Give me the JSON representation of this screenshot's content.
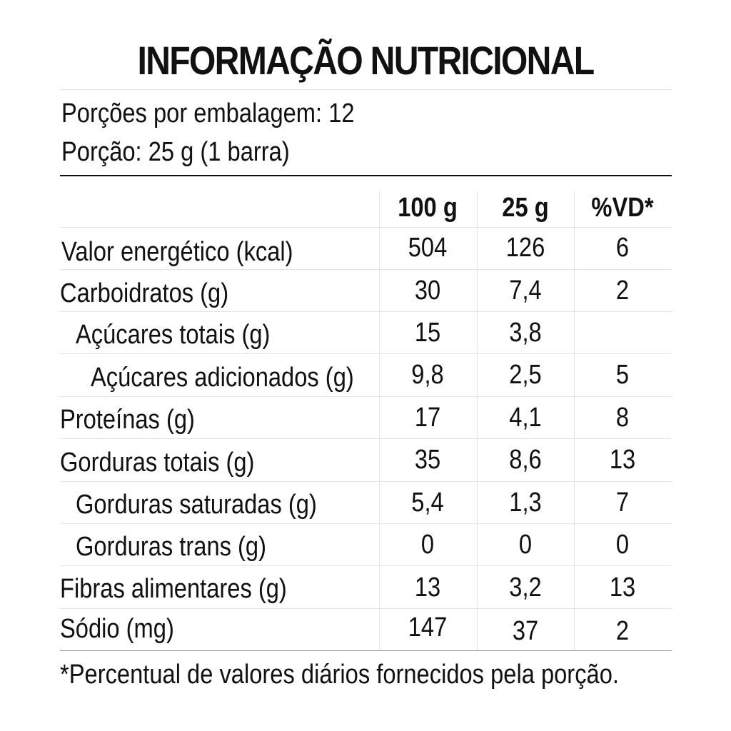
{
  "title": "INFORMAÇÃO NUTRICIONAL",
  "servings": {
    "per_package": "Porções por embalagem: 12",
    "portion": "Porção: 25 g (1 barra)"
  },
  "columns": [
    "100 g",
    "25 g",
    "%VD*"
  ],
  "rows": [
    {
      "label": "Valor energético (kcal)",
      "per100": "504",
      "per25": "126",
      "vd": "6"
    },
    {
      "label": "Carboidratos (g)",
      "per100": "30",
      "per25": "7,4",
      "vd": "2"
    },
    {
      "label": "Açúcares totais (g)",
      "per100": "15",
      "per25": "3,8",
      "vd": ""
    },
    {
      "label": "Açúcares adicionados (g)",
      "per100": "9,8",
      "per25": "2,5",
      "vd": "5"
    },
    {
      "label": "Proteínas (g)",
      "per100": "17",
      "per25": "4,1",
      "vd": "8"
    },
    {
      "label": "Gorduras totais (g)",
      "per100": "35",
      "per25": "8,6",
      "vd": "13"
    },
    {
      "label": "Gorduras saturadas (g)",
      "per100": "5,4",
      "per25": "1,3",
      "vd": "7"
    },
    {
      "label": "Gorduras trans (g)",
      "per100": "0",
      "per25": "0",
      "vd": "0"
    },
    {
      "label": "Fibras alimentares (g)",
      "per100": "13",
      "per25": "3,2",
      "vd": "13"
    },
    {
      "label": "Sódio (mg)",
      "per100": "147",
      "per25": "37",
      "vd": "2"
    }
  ],
  "footnote": "*Percentual de valores diários fornecidos pela porção."
}
